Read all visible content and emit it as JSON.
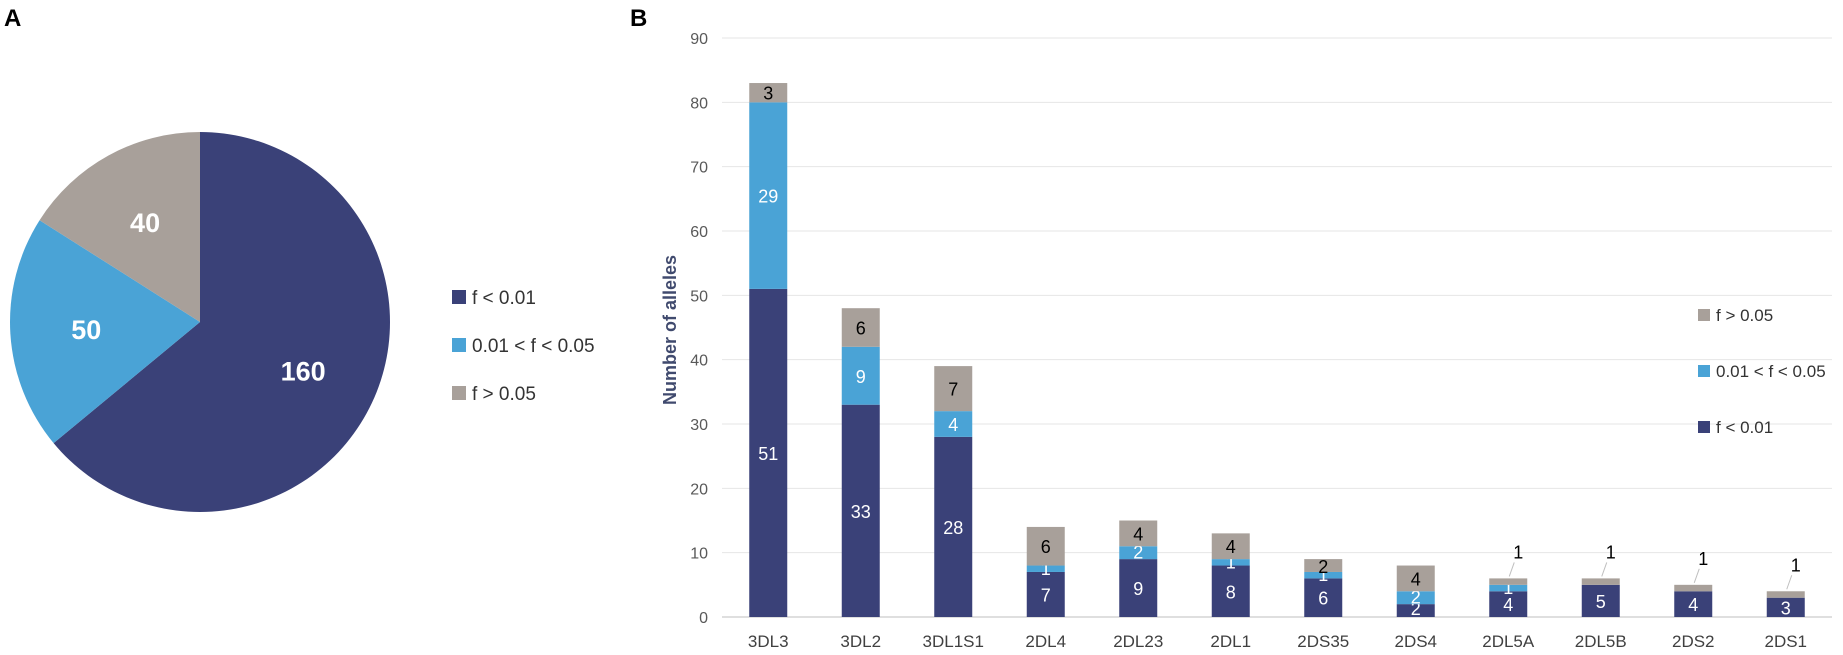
{
  "panel_a_label": "A",
  "panel_b_label": "B",
  "colors": {
    "f_lt_001": "#3a4178",
    "f_mid": "#4aa3d6",
    "f_gt_005": "#a8a09a"
  },
  "chart_data": [
    {
      "type": "pie",
      "panel": "A",
      "title": "",
      "labels": [
        "f < 0.01",
        "0.01 < f < 0.05",
        "f > 0.05"
      ],
      "values": [
        160,
        50,
        40
      ],
      "legend": [
        "f < 0.01",
        "0.01 < f < 0.05",
        "f > 0.05"
      ],
      "legend_position": "right"
    },
    {
      "type": "bar",
      "stacked": true,
      "panel": "B",
      "title": "",
      "xlabel": "",
      "ylabel": "Number of alleles",
      "ylim": [
        0,
        90
      ],
      "yticks": [
        0,
        10,
        20,
        30,
        40,
        50,
        60,
        70,
        80,
        90
      ],
      "categories": [
        "3DL3",
        "3DL2",
        "3DL1S1",
        "2DL4",
        "2DL23",
        "2DL1",
        "2DS35",
        "2DS4",
        "2DL5A",
        "2DL5B",
        "2DS2",
        "2DS1"
      ],
      "series": [
        {
          "name": "f < 0.01",
          "values": [
            51,
            33,
            28,
            7,
            9,
            8,
            6,
            2,
            4,
            5,
            4,
            3
          ]
        },
        {
          "name": "0.01 < f < 0.05",
          "values": [
            29,
            9,
            4,
            1,
            2,
            1,
            1,
            2,
            1,
            0,
            0,
            0
          ]
        },
        {
          "name": "f > 0.05",
          "values": [
            3,
            6,
            7,
            6,
            4,
            4,
            2,
            4,
            1,
            1,
            1,
            1
          ]
        }
      ],
      "legend": [
        "f > 0.05",
        "0.01 < f < 0.05",
        "f < 0.01"
      ],
      "legend_position": "right",
      "grid": true
    }
  ]
}
